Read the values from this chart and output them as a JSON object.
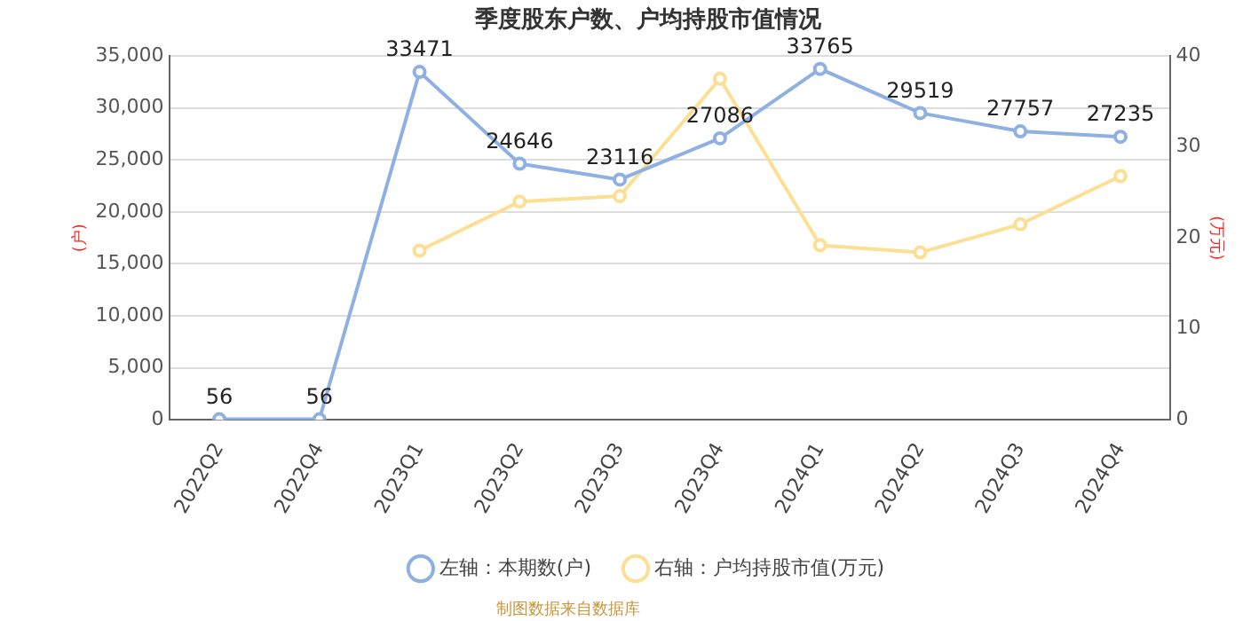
{
  "chart_data": {
    "type": "line",
    "title": "季度股东户数、户均持股市值情况",
    "ylabel": "(户)",
    "y2label": "(万元)",
    "categories": [
      "2022Q2",
      "2022Q4",
      "2023Q1",
      "2023Q2",
      "2023Q3",
      "2023Q4",
      "2024Q1",
      "2024Q2",
      "2024Q3",
      "2024Q4"
    ],
    "series": [
      {
        "name": "左轴：本期数(户)",
        "color": "#8fb0e3",
        "values": [
          56,
          56,
          33471,
          24646,
          23116,
          27086,
          33765,
          29519,
          27757,
          27235
        ],
        "value_labels": [
          "56",
          "56",
          "33471",
          "24646",
          "23116",
          "27086",
          "33765",
          "29519",
          "27757",
          "27235"
        ]
      },
      {
        "name": "右轴：户均持股市值(万元)",
        "color": "#fddf93",
        "axis": "y2",
        "values": [
          null,
          null,
          18.6,
          24.0,
          24.6,
          37.5,
          19.2,
          18.4,
          21.5,
          26.8
        ]
      }
    ],
    "ylim": [
      0,
      35000
    ],
    "yticks": [
      {
        "value": 0,
        "label": "0"
      },
      {
        "value": 5000,
        "label": "5,000"
      },
      {
        "value": 10000,
        "label": "10,000"
      },
      {
        "value": 15000,
        "label": "15,000"
      },
      {
        "value": 20000,
        "label": "20,000"
      },
      {
        "value": 25000,
        "label": "25,000"
      },
      {
        "value": 30000,
        "label": "30,000"
      },
      {
        "value": 35000,
        "label": "35,000"
      }
    ],
    "y2lim": [
      0,
      40
    ],
    "y2ticks": [
      0,
      10,
      20,
      30,
      40
    ],
    "grid": "y",
    "legend": "bottom",
    "marker": "circle",
    "line_style": "solid",
    "annotations": [
      "制图数据来自数据库"
    ]
  }
}
